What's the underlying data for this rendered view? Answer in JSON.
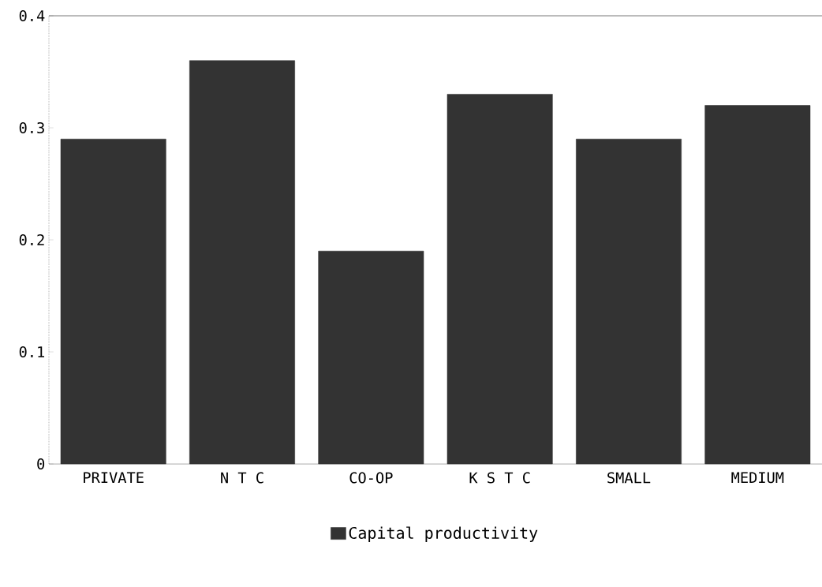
{
  "chart_data": {
    "type": "bar",
    "categories": [
      "PRIVATE",
      "N T C",
      "CO-OP",
      "K S T C",
      "SMALL",
      "MEDIUM"
    ],
    "series": [
      {
        "name": "Capital productivity",
        "color": "#333333",
        "values": [
          0.29,
          0.36,
          0.19,
          0.33,
          0.29,
          0.32
        ]
      }
    ],
    "ylim": [
      0,
      0.4
    ],
    "yticks": [
      0,
      0.1,
      0.2,
      0.3,
      0.4
    ],
    "grid": false,
    "legend": "bottom"
  }
}
